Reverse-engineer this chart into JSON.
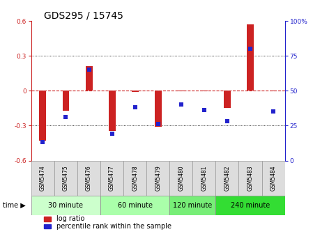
{
  "title": "GDS295 / 15745",
  "samples": [
    "GSM5474",
    "GSM5475",
    "GSM5476",
    "GSM5477",
    "GSM5478",
    "GSM5479",
    "GSM5480",
    "GSM5481",
    "GSM5482",
    "GSM5483",
    "GSM5484"
  ],
  "log_ratio": [
    -0.43,
    -0.17,
    0.21,
    -0.345,
    -0.01,
    -0.31,
    -0.005,
    -0.005,
    -0.15,
    0.57,
    -0.005
  ],
  "percentile_rank": [
    13,
    31,
    65,
    19,
    38,
    26,
    40,
    36,
    28,
    80,
    35
  ],
  "time_groups": [
    {
      "label": "30 minute",
      "start": 0,
      "end": 3,
      "color": "#ccffcc"
    },
    {
      "label": "60 minute",
      "start": 3,
      "end": 6,
      "color": "#aaffaa"
    },
    {
      "label": "120 minute",
      "start": 6,
      "end": 8,
      "color": "#77ee77"
    },
    {
      "label": "240 minute",
      "start": 8,
      "end": 11,
      "color": "#33dd33"
    }
  ],
  "ylim_left": [
    -0.6,
    0.6
  ],
  "ylim_right": [
    0,
    100
  ],
  "yticks_left": [
    -0.6,
    -0.3,
    0.0,
    0.3,
    0.6
  ],
  "yticks_right": [
    0,
    25,
    50,
    75,
    100
  ],
  "ytick_labels_left": [
    "-0.6",
    "-0.3",
    "0",
    "0.3",
    "0.6"
  ],
  "ytick_labels_right": [
    "0",
    "25",
    "50",
    "75",
    "100%"
  ],
  "bar_color": "#cc2222",
  "dot_color": "#2222cc",
  "bar_width": 0.3,
  "dot_size": 25,
  "bg_color": "#ffffff",
  "title_fontsize": 10,
  "tick_fontsize": 6.5,
  "sample_fontsize": 5.5,
  "time_fontsize": 7,
  "legend_fontsize": 7,
  "legend_log": "log ratio",
  "legend_pct": "percentile rank within the sample"
}
